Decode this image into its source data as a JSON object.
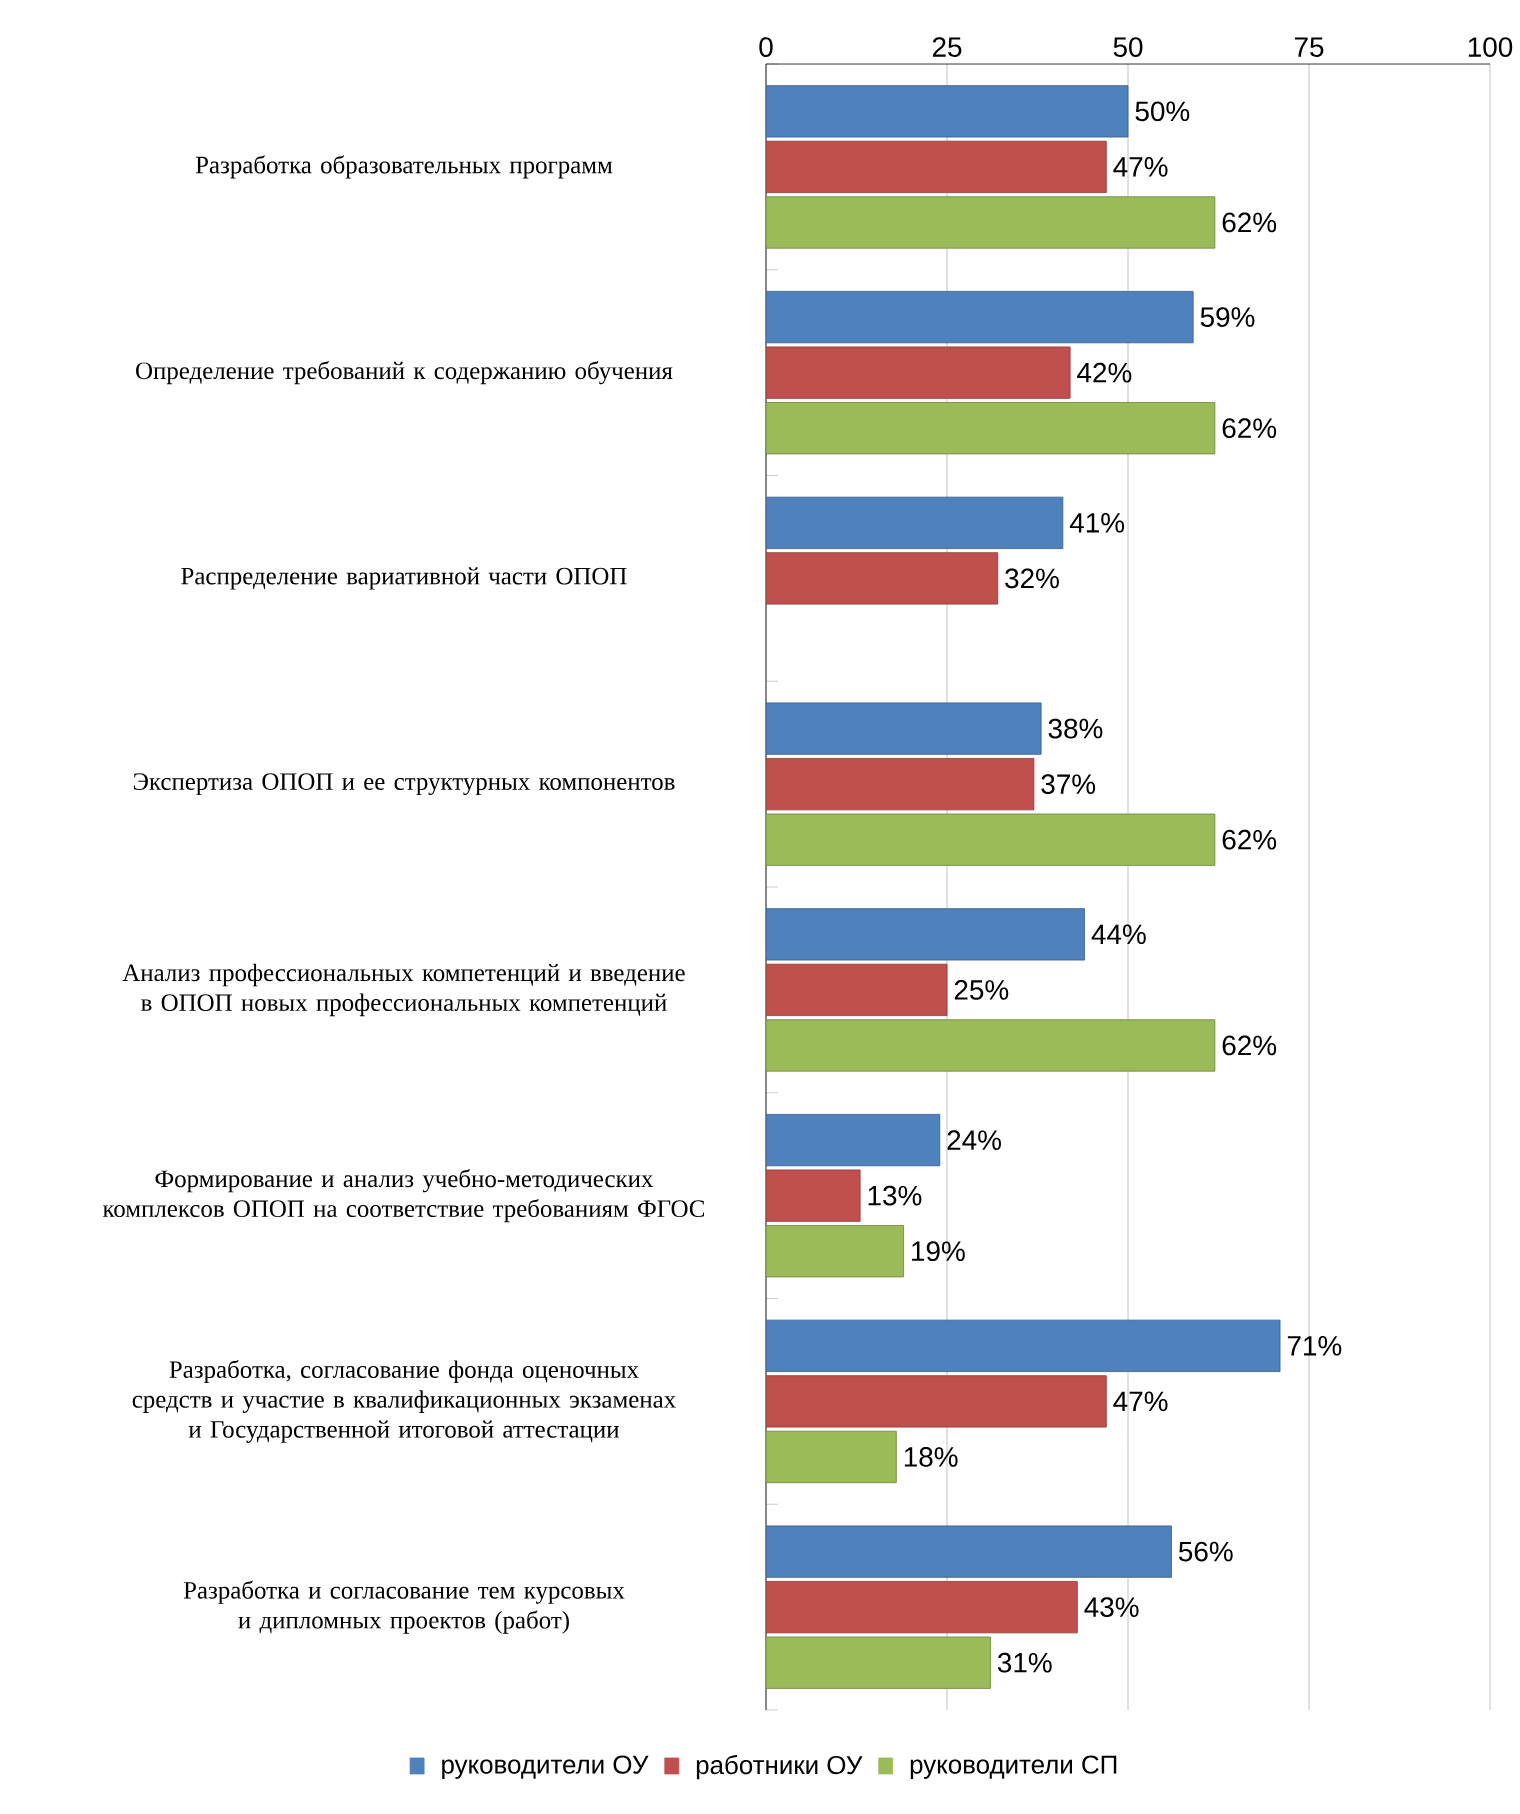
{
  "chart_data": {
    "type": "bar",
    "orientation": "horizontal",
    "categories": [
      "Разработка образовательных программ",
      "Определение требований к содержанию обучения",
      "Распределение вариативной части ОПОП",
      "Экспертиза ОПОП и ее структурных компонентов",
      "Анализ профессиональных компетенций и введение в ОПОП новых профессиональных компетенций",
      "Формирование и анализ учебно-методических комплексов ОПОП на соответствие требованиям ФГОС",
      "Разработка, согласование фонда оценочных средств и участие в квалификационных экзаменах и Государственной итоговой аттестации",
      "Разработка и согласование тем курсовых и дипломных проектов (работ)"
    ],
    "series": [
      {
        "name": "руководители ОУ",
        "color": "#4f81bd",
        "values": [
          50,
          59,
          41,
          38,
          44,
          24,
          71,
          56
        ],
        "value_labels": [
          "50%",
          "59%",
          "41%",
          "38%",
          "44%",
          "24%",
          "71%",
          "56%"
        ]
      },
      {
        "name": "работники ОУ",
        "color": "#c0504d",
        "values": [
          47,
          42,
          32,
          37,
          25,
          13,
          47,
          43
        ],
        "value_labels": [
          "47%",
          "42%",
          "32%",
          "37%",
          "25%",
          "13%",
          "47%",
          "43%"
        ]
      },
      {
        "name": "руководители СП",
        "color": "#9bbb59",
        "values": [
          62,
          62,
          null,
          62,
          62,
          19,
          18,
          31
        ],
        "value_labels": [
          "62%",
          "62%",
          null,
          "62%",
          "62%",
          "19%",
          "18%",
          "31%"
        ]
      }
    ],
    "xlim": [
      0,
      100
    ],
    "xticks": [
      0,
      25,
      50,
      75,
      100
    ],
    "grid": "x",
    "legend": "bottom"
  }
}
